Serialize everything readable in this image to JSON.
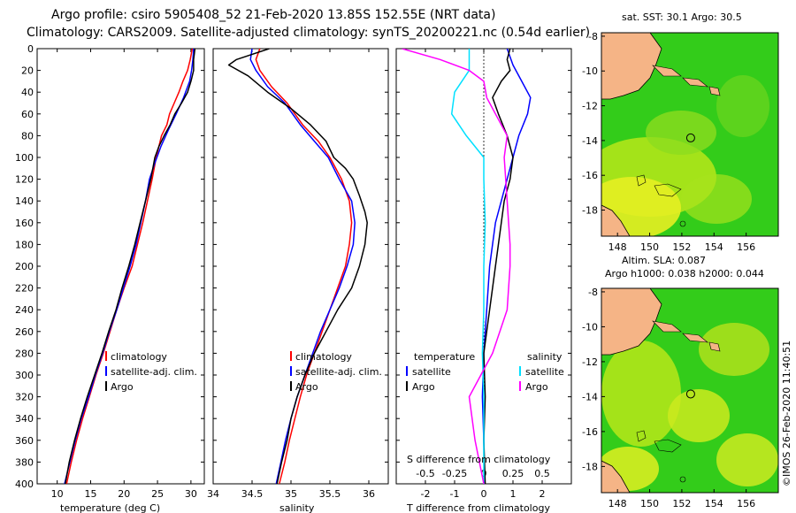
{
  "header": {
    "line1": "Argo profile: csiro 5905408_52 21-Feb-2020 13.85S 152.55E (NRT data)",
    "line2": "Climatology: CARS2009. Satellite-adjusted climatology: synTS_20200221.nc (0.54d earlier)"
  },
  "colors": {
    "climatology": "#ff0000",
    "satellite": "#0000ff",
    "argo": "#000000",
    "sat_temp": "#00e0ff",
    "argo_sal": "#ff00ff"
  },
  "depth_ticks": [
    "0",
    "20",
    "40",
    "60",
    "80",
    "100",
    "120",
    "140",
    "160",
    "180",
    "200",
    "220",
    "240",
    "260",
    "280",
    "300",
    "320",
    "340",
    "360",
    "380",
    "400"
  ],
  "chart_data": [
    {
      "type": "line",
      "xlabel": "temperature (deg C)",
      "ylabel": "depth",
      "xlim": [
        7,
        32
      ],
      "ylim": [
        400,
        0
      ],
      "x_ticks": [
        "10",
        "15",
        "20",
        "25",
        "30"
      ],
      "x_tick_values": [
        10,
        15,
        20,
        25,
        30
      ],
      "legend": [
        "climatology",
        "satellite-adj. clim.",
        "Argo"
      ],
      "series": [
        {
          "name": "climatology",
          "color": "#ff0000",
          "points": [
            [
              30.2,
              0
            ],
            [
              29.9,
              10
            ],
            [
              29.5,
              20
            ],
            [
              28.8,
              30
            ],
            [
              28.2,
              40
            ],
            [
              27.5,
              50
            ],
            [
              26.8,
              60
            ],
            [
              26.4,
              70
            ],
            [
              25.6,
              80
            ],
            [
              24.8,
              100
            ],
            [
              24.2,
              120
            ],
            [
              23.5,
              140
            ],
            [
              22.8,
              160
            ],
            [
              22.0,
              180
            ],
            [
              21.2,
              200
            ],
            [
              20.0,
              220
            ],
            [
              18.9,
              240
            ],
            [
              17.9,
              260
            ],
            [
              16.9,
              280
            ],
            [
              15.8,
              300
            ],
            [
              14.8,
              320
            ],
            [
              13.8,
              340
            ],
            [
              12.9,
              360
            ],
            [
              12.1,
              380
            ],
            [
              11.4,
              400
            ]
          ]
        },
        {
          "name": "satellite-adj. clim.",
          "color": "#0000ff",
          "points": [
            [
              30.4,
              0
            ],
            [
              30.3,
              10
            ],
            [
              30.1,
              20
            ],
            [
              29.8,
              30
            ],
            [
              28.9,
              45
            ],
            [
              27.8,
              60
            ],
            [
              26.6,
              75
            ],
            [
              25.5,
              90
            ],
            [
              24.6,
              105
            ],
            [
              23.8,
              120
            ],
            [
              23.2,
              140
            ],
            [
              22.5,
              160
            ],
            [
              21.8,
              180
            ],
            [
              20.9,
              200
            ],
            [
              19.9,
              220
            ],
            [
              18.9,
              240
            ],
            [
              17.8,
              260
            ],
            [
              16.8,
              280
            ],
            [
              15.7,
              300
            ],
            [
              14.7,
              320
            ],
            [
              13.6,
              340
            ],
            [
              12.7,
              360
            ],
            [
              11.9,
              380
            ],
            [
              11.1,
              400
            ]
          ]
        },
        {
          "name": "Argo",
          "color": "#000000",
          "points": [
            [
              30.6,
              0
            ],
            [
              30.5,
              5
            ],
            [
              30.4,
              10
            ],
            [
              30.4,
              20
            ],
            [
              30.0,
              30
            ],
            [
              29.5,
              40
            ],
            [
              28.6,
              50
            ],
            [
              27.6,
              60
            ],
            [
              26.9,
              70
            ],
            [
              26.0,
              80
            ],
            [
              25.2,
              90
            ],
            [
              24.6,
              100
            ],
            [
              24.0,
              120
            ],
            [
              23.2,
              140
            ],
            [
              22.4,
              160
            ],
            [
              21.6,
              180
            ],
            [
              20.7,
              200
            ],
            [
              19.7,
              220
            ],
            [
              18.8,
              240
            ],
            [
              17.7,
              260
            ],
            [
              16.7,
              280
            ],
            [
              15.6,
              300
            ],
            [
              14.5,
              320
            ],
            [
              13.5,
              340
            ],
            [
              12.6,
              360
            ],
            [
              11.8,
              380
            ],
            [
              11.2,
              400
            ]
          ]
        }
      ]
    },
    {
      "type": "line",
      "xlabel": "salinity",
      "ylabel": "depth",
      "xlim": [
        34.0,
        36.25
      ],
      "ylim": [
        400,
        0
      ],
      "x_ticks": [
        "34",
        "34.5",
        "35",
        "35.5",
        "36"
      ],
      "x_tick_values": [
        34,
        34.5,
        35,
        35.5,
        36
      ],
      "legend": [
        "climatology",
        "satellite-adj. clim.",
        "Argo"
      ],
      "series": [
        {
          "name": "climatology",
          "color": "#ff0000",
          "points": [
            [
              34.6,
              0
            ],
            [
              34.55,
              10
            ],
            [
              34.6,
              20
            ],
            [
              34.75,
              35
            ],
            [
              34.95,
              50
            ],
            [
              35.15,
              70
            ],
            [
              35.35,
              85
            ],
            [
              35.5,
              100
            ],
            [
              35.65,
              120
            ],
            [
              35.75,
              140
            ],
            [
              35.78,
              160
            ],
            [
              35.75,
              180
            ],
            [
              35.7,
              200
            ],
            [
              35.6,
              220
            ],
            [
              35.5,
              240
            ],
            [
              35.4,
              260
            ],
            [
              35.3,
              280
            ],
            [
              35.2,
              300
            ],
            [
              35.12,
              320
            ],
            [
              35.05,
              340
            ],
            [
              34.98,
              360
            ],
            [
              34.92,
              380
            ],
            [
              34.85,
              400
            ]
          ]
        },
        {
          "name": "satellite-adj. clim.",
          "color": "#0000ff",
          "points": [
            [
              34.5,
              0
            ],
            [
              34.48,
              10
            ],
            [
              34.55,
              20
            ],
            [
              34.7,
              35
            ],
            [
              34.92,
              50
            ],
            [
              35.12,
              70
            ],
            [
              35.3,
              85
            ],
            [
              35.48,
              100
            ],
            [
              35.62,
              120
            ],
            [
              35.78,
              140
            ],
            [
              35.82,
              160
            ],
            [
              35.8,
              180
            ],
            [
              35.72,
              200
            ],
            [
              35.62,
              220
            ],
            [
              35.5,
              240
            ],
            [
              35.38,
              260
            ],
            [
              35.28,
              280
            ],
            [
              35.18,
              300
            ],
            [
              35.08,
              320
            ],
            [
              35.0,
              340
            ],
            [
              34.93,
              360
            ],
            [
              34.87,
              380
            ],
            [
              34.81,
              400
            ]
          ]
        },
        {
          "name": "Argo",
          "color": "#000000",
          "points": [
            [
              34.72,
              0
            ],
            [
              34.3,
              10
            ],
            [
              34.2,
              15
            ],
            [
              34.45,
              25
            ],
            [
              34.7,
              40
            ],
            [
              35.0,
              55
            ],
            [
              35.25,
              70
            ],
            [
              35.45,
              85
            ],
            [
              35.55,
              100
            ],
            [
              35.7,
              110
            ],
            [
              35.8,
              120
            ],
            [
              35.88,
              135
            ],
            [
              35.95,
              150
            ],
            [
              35.98,
              160
            ],
            [
              35.95,
              180
            ],
            [
              35.88,
              200
            ],
            [
              35.78,
              220
            ],
            [
              35.6,
              240
            ],
            [
              35.45,
              260
            ],
            [
              35.3,
              280
            ],
            [
              35.18,
              300
            ],
            [
              35.08,
              320
            ],
            [
              35.0,
              340
            ],
            [
              34.95,
              360
            ],
            [
              34.88,
              380
            ],
            [
              34.82,
              400
            ]
          ]
        }
      ]
    },
    {
      "type": "line",
      "xlabel": "T difference from climatology",
      "top_label": "S difference from climatology",
      "ylabel": "depth",
      "xlim": [
        -3,
        3
      ],
      "ylim": [
        400,
        0
      ],
      "x_ticks": [
        "-2",
        "-1",
        "0",
        "1",
        "2"
      ],
      "x_tick_values": [
        -2,
        -1,
        0,
        1,
        2
      ],
      "s_ticks": [
        "-0.5",
        "-0.25",
        "0",
        "0.25",
        "0.5"
      ],
      "s_tick_values": [
        -0.5,
        -0.25,
        0,
        0.25,
        0.5
      ],
      "legend": {
        "temperature_heading": "temperature",
        "salinity_heading": "salinity",
        "satellite": "satellite",
        "argo": "Argo"
      },
      "series": [
        {
          "name": "temperature satellite",
          "color": "#0000ff",
          "points": [
            [
              0.8,
              0
            ],
            [
              1.0,
              15
            ],
            [
              1.3,
              30
            ],
            [
              1.6,
              45
            ],
            [
              1.5,
              60
            ],
            [
              1.2,
              80
            ],
            [
              1.0,
              100
            ],
            [
              0.8,
              120
            ],
            [
              0.6,
              140
            ],
            [
              0.4,
              160
            ],
            [
              0.3,
              180
            ],
            [
              0.2,
              200
            ],
            [
              0.1,
              240
            ],
            [
              0.0,
              280
            ],
            [
              -0.05,
              320
            ],
            [
              0.0,
              360
            ],
            [
              0.02,
              400
            ]
          ]
        },
        {
          "name": "temperature Argo",
          "color": "#000000",
          "points": [
            [
              0.9,
              0
            ],
            [
              0.8,
              10
            ],
            [
              0.9,
              20
            ],
            [
              0.6,
              30
            ],
            [
              0.3,
              45
            ],
            [
              0.5,
              60
            ],
            [
              0.8,
              80
            ],
            [
              1.0,
              100
            ],
            [
              0.9,
              120
            ],
            [
              0.7,
              140
            ],
            [
              0.6,
              160
            ],
            [
              0.5,
              180
            ],
            [
              0.4,
              200
            ],
            [
              0.3,
              220
            ],
            [
              0.2,
              240
            ],
            [
              0.1,
              260
            ],
            [
              0.0,
              280
            ],
            [
              0.05,
              320
            ],
            [
              0.0,
              360
            ],
            [
              0.05,
              400
            ]
          ]
        },
        {
          "name": "salinity satellite",
          "color": "#00e0ff",
          "points": [
            [
              -0.5,
              0
            ],
            [
              -0.5,
              20
            ],
            [
              -1.0,
              40
            ],
            [
              -1.1,
              60
            ],
            [
              -0.6,
              80
            ],
            [
              0.0,
              100
            ],
            [
              0.0,
              120
            ],
            [
              0.05,
              160
            ],
            [
              0.0,
              200
            ],
            [
              0.0,
              240
            ],
            [
              -0.05,
              280
            ],
            [
              0.0,
              320
            ],
            [
              0.0,
              360
            ],
            [
              0.0,
              400
            ]
          ]
        },
        {
          "name": "salinity Argo",
          "color": "#ff00ff",
          "points": [
            [
              -2.8,
              0
            ],
            [
              -1.5,
              10
            ],
            [
              -0.5,
              20
            ],
            [
              0.0,
              30
            ],
            [
              0.1,
              45
            ],
            [
              0.4,
              60
            ],
            [
              0.8,
              80
            ],
            [
              0.7,
              100
            ],
            [
              0.8,
              140
            ],
            [
              0.9,
              180
            ],
            [
              0.9,
              200
            ],
            [
              0.8,
              240
            ],
            [
              0.3,
              280
            ],
            [
              -0.5,
              320
            ],
            [
              -0.3,
              360
            ],
            [
              0.0,
              400
            ]
          ]
        }
      ]
    }
  ],
  "maps": [
    {
      "title": "sat. SST: 30.1 Argo: 30.5",
      "x_ticks": [
        "148",
        "150",
        "152",
        "154",
        "156"
      ],
      "x_tick_values": [
        148,
        150,
        152,
        154,
        156
      ],
      "y_ticks": [
        "-8",
        "-10",
        "-12",
        "-14",
        "-16",
        "-18"
      ],
      "y_tick_values": [
        -8,
        -10,
        -12,
        -14,
        -16,
        -18
      ],
      "xlim": [
        147,
        158
      ],
      "ylim": [
        -19.5,
        -7.8
      ],
      "argo_lon": 152.55,
      "argo_lat": -13.85
    },
    {
      "title_line1": "Altim. SLA: 0.087",
      "title_line2": "Argo h1000: 0.038 h2000: 0.044",
      "x_ticks": [
        "148",
        "150",
        "152",
        "154",
        "156"
      ],
      "x_tick_values": [
        148,
        150,
        152,
        154,
        156
      ],
      "y_ticks": [
        "-8",
        "-10",
        "-12",
        "-14",
        "-16",
        "-18"
      ],
      "y_tick_values": [
        -8,
        -10,
        -12,
        -14,
        -16,
        -18
      ],
      "xlim": [
        147,
        158
      ],
      "ylim": [
        -19.5,
        -7.8
      ],
      "argo_lon": 152.55,
      "argo_lat": -13.85
    }
  ],
  "footer_stamp": "©IMOS 26-Feb-2020 11:40:51"
}
